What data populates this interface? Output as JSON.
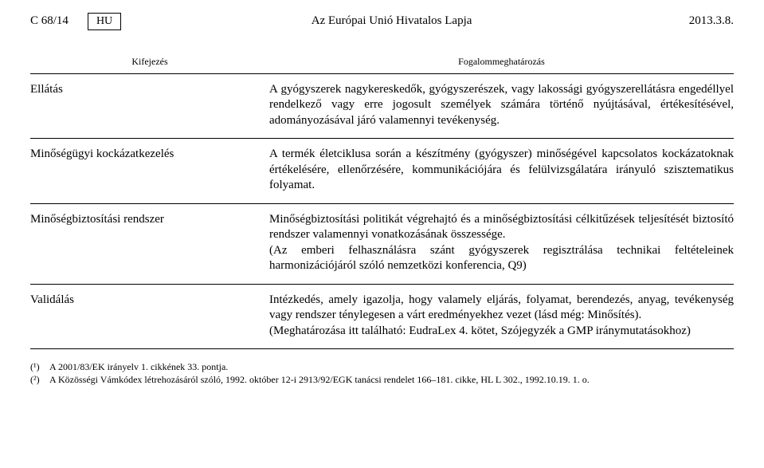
{
  "header": {
    "page_no": "C 68/14",
    "lang": "HU",
    "title": "Az Európai Unió Hivatalos Lapja",
    "date": "2013.3.8."
  },
  "table": {
    "col1_header": "Kifejezés",
    "col2_header": "Fogalommeghatározás",
    "rows": [
      {
        "term": "Ellátás",
        "definition": "A gyógyszerek nagykereskedők, gyógyszerészek, vagy lakossági gyógyszerellátásra engedéllyel rendelkező vagy erre jogosult személyek számára történő nyújtásával, értékesítésével, adományozásával járó valamennyi tevékenység."
      },
      {
        "term": "Minőségügyi kockázatkezelés",
        "definition": "A termék életciklusa során a készítmény (gyógyszer) minőségével kapcsolatos kockázatoknak értékelésére, ellenőrzésére, kommunikációjára és felülvizsgálatára irányuló szisztematikus folyamat."
      },
      {
        "term": "Minőségbiztosítási rendszer",
        "definition": "Minőségbiztosítási politikát végrehajtó és a minőségbiztosítási célkitűzések teljesítését biztosító rendszer valamennyi vonatkozásának összessége.\n(Az emberi felhasználásra szánt gyógyszerek regisztrálása technikai feltételeinek harmonizációjáról szóló nemzetközi konferencia, Q9)"
      },
      {
        "term": "Validálás",
        "definition": "Intézkedés, amely igazolja, hogy valamely eljárás, folyamat, berendezés, anyag, tevékenység vagy rendszer ténylegesen a várt eredményekhez vezet (lásd még: Minősítés).\n(Meghatározása itt található: EudraLex 4. kötet, Szójegyzék a GMP iránymutatásokhoz)"
      }
    ]
  },
  "footnotes": [
    {
      "mark": "(¹)",
      "text": "A 2001/83/EK irányelv 1. cikkének 33. pontja."
    },
    {
      "mark": "(²)",
      "text": "A Közösségi Vámkódex létrehozásáról szóló, 1992. október 12-i 2913/92/EGK tanácsi rendelet 166–181. cikke, HL L 302., 1992.10.19. 1. o."
    }
  ]
}
